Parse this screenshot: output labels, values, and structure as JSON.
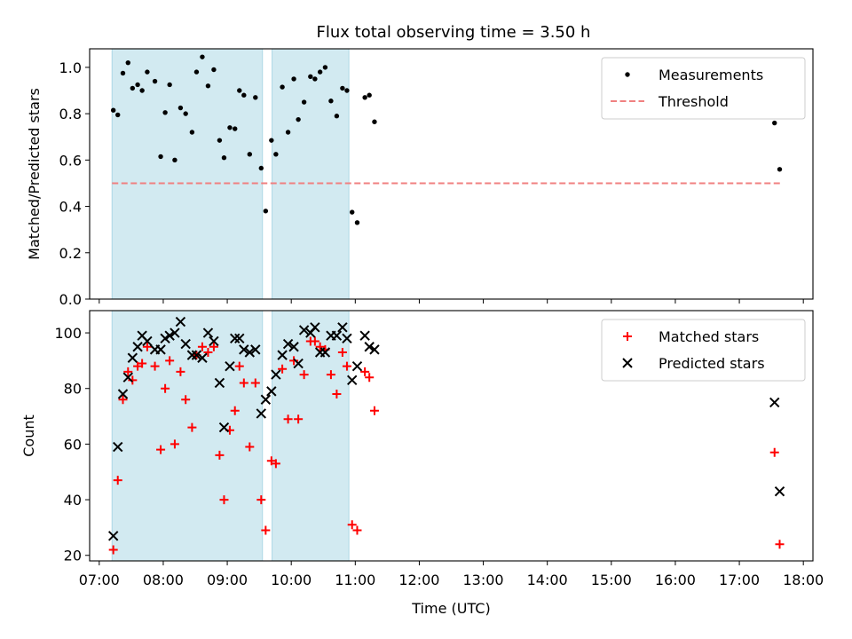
{
  "figure": {
    "title": "Flux total observing time = 3.50 h"
  },
  "colors": {
    "band": "#add8e6",
    "threshold": "#f08080",
    "matched": "#ff0000",
    "predicted": "#000000",
    "measurement": "#000000"
  },
  "chart_data": [
    {
      "type": "scatter",
      "panel": "top",
      "ylabel": "Matched/Predicted stars",
      "xlabel": "",
      "xlim": [
        6.85,
        18.15
      ],
      "ylim": [
        0.0,
        1.08
      ],
      "yticks": [
        0.0,
        0.2,
        0.4,
        0.6,
        0.8,
        1.0
      ],
      "ytick_labels": [
        "0.0",
        "0.2",
        "0.4",
        "0.6",
        "0.8",
        "1.0"
      ],
      "shaded_intervals": [
        [
          7.2,
          9.55
        ],
        [
          9.7,
          10.9
        ]
      ],
      "legend_position": "top-right",
      "legend": [
        "Measurements",
        "Threshold"
      ],
      "threshold": {
        "name": "Threshold",
        "y": 0.5,
        "x_range": [
          7.2,
          17.65
        ]
      },
      "series": [
        {
          "name": "Measurements",
          "x": [
            7.22,
            7.29,
            7.37,
            7.45,
            7.52,
            7.6,
            7.67,
            7.75,
            7.87,
            7.96,
            8.03,
            8.1,
            8.18,
            8.27,
            8.35,
            8.45,
            8.52,
            8.61,
            8.7,
            8.79,
            8.88,
            8.95,
            9.04,
            9.12,
            9.19,
            9.26,
            9.35,
            9.44,
            9.53,
            9.6,
            9.69,
            9.76,
            9.86,
            9.95,
            10.04,
            10.11,
            10.2,
            10.3,
            10.37,
            10.45,
            10.53,
            10.62,
            10.71,
            10.8,
            10.87,
            10.95,
            11.03,
            11.15,
            11.22,
            11.3,
            17.55,
            17.63
          ],
          "y": [
            0.815,
            0.795,
            0.975,
            1.02,
            0.91,
            0.925,
            0.9,
            0.98,
            0.94,
            0.615,
            0.805,
            0.925,
            0.6,
            0.825,
            0.8,
            0.72,
            0.98,
            1.045,
            0.92,
            0.99,
            0.685,
            0.61,
            0.74,
            0.735,
            0.9,
            0.88,
            0.625,
            0.87,
            0.565,
            0.38,
            0.685,
            0.625,
            0.915,
            0.72,
            0.95,
            0.775,
            0.85,
            0.96,
            0.95,
            0.98,
            1.0,
            0.855,
            0.79,
            0.91,
            0.9,
            0.375,
            0.33,
            0.87,
            0.88,
            0.765,
            0.76,
            0.56
          ]
        }
      ]
    },
    {
      "type": "scatter",
      "panel": "bottom",
      "xlabel": "Time (UTC)",
      "ylabel": "Count",
      "xlim": [
        6.85,
        18.15
      ],
      "ylim": [
        18,
        108
      ],
      "yticks": [
        20,
        40,
        60,
        80,
        100
      ],
      "ytick_labels": [
        "20",
        "40",
        "60",
        "80",
        "100"
      ],
      "xticks": [
        7,
        8,
        9,
        10,
        11,
        12,
        13,
        14,
        15,
        16,
        17,
        18
      ],
      "xtick_labels": [
        "07:00",
        "08:00",
        "09:00",
        "10:00",
        "11:00",
        "12:00",
        "13:00",
        "14:00",
        "15:00",
        "16:00",
        "17:00",
        "18:00"
      ],
      "shaded_intervals": [
        [
          7.2,
          9.55
        ],
        [
          9.7,
          10.9
        ]
      ],
      "legend_position": "top-right",
      "legend": [
        "Matched stars",
        "Predicted stars"
      ],
      "series": [
        {
          "name": "Matched stars",
          "x": [
            7.22,
            7.29,
            7.37,
            7.45,
            7.52,
            7.6,
            7.67,
            7.75,
            7.87,
            7.96,
            8.03,
            8.1,
            8.18,
            8.27,
            8.35,
            8.45,
            8.52,
            8.61,
            8.7,
            8.79,
            8.88,
            8.95,
            9.04,
            9.12,
            9.19,
            9.26,
            9.35,
            9.44,
            9.53,
            9.6,
            9.69,
            9.76,
            9.86,
            9.95,
            10.04,
            10.11,
            10.2,
            10.3,
            10.37,
            10.45,
            10.53,
            10.62,
            10.71,
            10.8,
            10.87,
            10.95,
            11.03,
            11.15,
            11.22,
            11.3,
            17.55,
            17.63
          ],
          "y": [
            22,
            47,
            76,
            86,
            83,
            88,
            89,
            95,
            88,
            58,
            80,
            90,
            60,
            86,
            76,
            66,
            92,
            95,
            93,
            95,
            56,
            40,
            65,
            72,
            88,
            82,
            59,
            82,
            40,
            29,
            54,
            53,
            87,
            69,
            90,
            69,
            85,
            97,
            97,
            95,
            94,
            85,
            78,
            93,
            88,
            31,
            29,
            86,
            84,
            72,
            57,
            24
          ]
        },
        {
          "name": "Predicted stars",
          "x": [
            7.22,
            7.29,
            7.37,
            7.45,
            7.52,
            7.6,
            7.67,
            7.75,
            7.87,
            7.96,
            8.03,
            8.1,
            8.18,
            8.27,
            8.35,
            8.45,
            8.52,
            8.61,
            8.7,
            8.79,
            8.88,
            8.95,
            9.04,
            9.12,
            9.19,
            9.26,
            9.35,
            9.44,
            9.53,
            9.6,
            9.69,
            9.76,
            9.86,
            9.95,
            10.04,
            10.11,
            10.2,
            10.3,
            10.37,
            10.45,
            10.53,
            10.62,
            10.71,
            10.8,
            10.87,
            10.95,
            11.03,
            11.15,
            11.22,
            11.3,
            17.55,
            17.63
          ],
          "y": [
            27,
            59,
            78,
            84,
            91,
            95,
            99,
            97,
            94,
            94,
            98,
            99,
            100,
            104,
            96,
            92,
            92,
            91,
            100,
            97,
            82,
            66,
            88,
            98,
            98,
            94,
            93,
            94,
            71,
            76,
            79,
            85,
            92,
            96,
            95,
            89,
            101,
            100,
            102,
            93,
            93,
            99,
            99,
            102,
            98,
            83,
            88,
            99,
            95,
            94,
            75,
            43
          ]
        }
      ]
    }
  ]
}
